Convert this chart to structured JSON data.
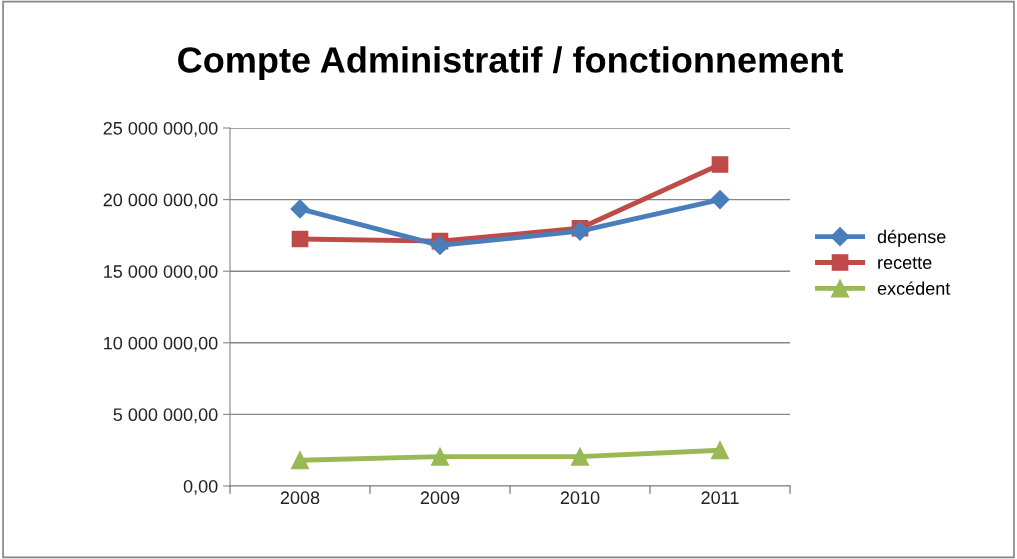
{
  "chart_data": {
    "type": "line",
    "title": "Compte Administratif / fonctionnement",
    "categories": [
      "2008",
      "2009",
      "2010",
      "2011"
    ],
    "series": [
      {
        "name": "dépense",
        "color": "#4a7ebb",
        "marker": "diamond",
        "values": [
          19350000,
          16800000,
          17800000,
          20000000
        ]
      },
      {
        "name": "recette",
        "color": "#be4b48",
        "marker": "square",
        "values": [
          17250000,
          17100000,
          18000000,
          22450000
        ]
      },
      {
        "name": "excédent",
        "color": "#98b954",
        "marker": "triangle",
        "values": [
          1800000,
          2050000,
          2050000,
          2500000
        ]
      }
    ],
    "ylim": [
      0,
      25000000
    ],
    "yticks": [
      {
        "value": 0,
        "label": "0,00"
      },
      {
        "value": 5000000,
        "label": "5 000 000,00"
      },
      {
        "value": 10000000,
        "label": "10 000 000,00"
      },
      {
        "value": 15000000,
        "label": "15 000 000,00"
      },
      {
        "value": 20000000,
        "label": "20 000 000,00"
      },
      {
        "value": 25000000,
        "label": "25 000 000,00"
      }
    ],
    "grid": "y",
    "legend": "right",
    "line_style": "solid"
  }
}
